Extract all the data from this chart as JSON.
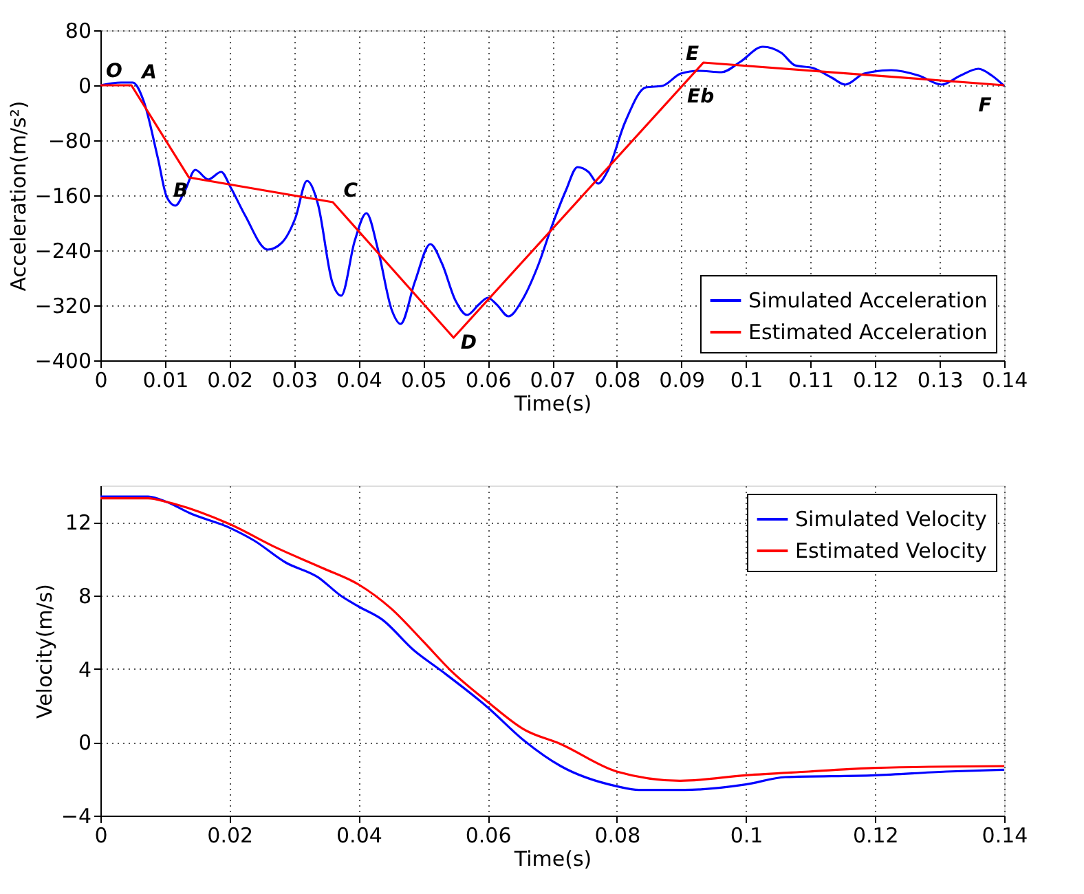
{
  "chart_data": [
    {
      "type": "line",
      "xlabel": "Time(s)",
      "ylabel": "Acceleration(m/s²)",
      "xlim": [
        0,
        0.14
      ],
      "ylim": [
        -400,
        80
      ],
      "xticks": [
        0,
        0.01,
        0.02,
        0.03,
        0.04,
        0.05,
        0.06,
        0.07,
        0.08,
        0.09,
        0.1,
        0.11,
        0.12,
        0.13,
        0.14
      ],
      "yticks": [
        -400,
        -320,
        -240,
        -160,
        -80,
        0,
        80
      ],
      "grid": true,
      "legend": "bottom right",
      "series": [
        {
          "name": "Simulated Acceleration",
          "color": "#0000ff",
          "x": [
            0,
            0.0032,
            0.005,
            0.0067,
            0.0089,
            0.0103,
            0.0116,
            0.0131,
            0.0147,
            0.0167,
            0.0187,
            0.0202,
            0.0224,
            0.0259,
            0.0281,
            0.0302,
            0.032,
            0.0337,
            0.0359,
            0.0373,
            0.0394,
            0.0412,
            0.043,
            0.0451,
            0.0465,
            0.0487,
            0.0511,
            0.0529,
            0.055,
            0.0568,
            0.0586,
            0.06,
            0.0614,
            0.0632,
            0.0653,
            0.0678,
            0.07,
            0.0721,
            0.0739,
            0.0756,
            0.0771,
            0.0785,
            0.0813,
            0.0845,
            0.087,
            0.0899,
            0.0927,
            0.0962,
            0.0991,
            0.1026,
            0.1055,
            0.1076,
            0.1104,
            0.1133,
            0.1154,
            0.1183,
            0.1225,
            0.1268,
            0.1303,
            0.1332,
            0.136,
            0.1381,
            0.14
          ],
          "values": [
            0,
            4,
            4,
            -23,
            -106,
            -163,
            -175,
            -153,
            -123,
            -137,
            -126,
            -149,
            -189,
            -239,
            -229,
            -193,
            -139,
            -173,
            -286,
            -306,
            -226,
            -186,
            -239,
            -326,
            -347,
            -286,
            -231,
            -259,
            -313,
            -334,
            -319,
            -309,
            -319,
            -336,
            -313,
            -262,
            -203,
            -153,
            -119,
            -126,
            -143,
            -126,
            -53,
            -3,
            -1,
            17,
            21,
            19,
            34,
            56,
            47,
            29,
            25,
            11,
            1,
            17,
            22,
            14,
            1,
            14,
            24,
            14,
            -1
          ]
        },
        {
          "name": "Estimated Acceleration",
          "color": "#ff0000",
          "x": [
            0,
            0.0048,
            0.0137,
            0.036,
            0.0547,
            0.0934,
            0.14
          ],
          "values": [
            0,
            0,
            -134,
            -170,
            -367,
            33,
            0
          ]
        }
      ],
      "annotations": [
        {
          "text": "O",
          "x": 0,
          "y": 0
        },
        {
          "text": "A",
          "x": 0.0048,
          "y": 0
        },
        {
          "text": "B",
          "x": 0.0137,
          "y": -134
        },
        {
          "text": "C",
          "x": 0.036,
          "y": -170
        },
        {
          "text": "D",
          "x": 0.0547,
          "y": -367
        },
        {
          "text": "E",
          "x": 0.0934,
          "y": 33
        },
        {
          "text": "Eb",
          "x": 0.0934,
          "y": 21
        },
        {
          "text": "F",
          "x": 0.14,
          "y": 0
        }
      ]
    },
    {
      "type": "line",
      "xlabel": "Time(s)",
      "ylabel": "Velocity(m/s)",
      "xlim": [
        0,
        0.14
      ],
      "ylim": [
        -4,
        14
      ],
      "xticks": [
        0,
        0.02,
        0.04,
        0.06,
        0.08,
        0.1,
        0.12,
        0.14
      ],
      "yticks": [
        -4,
        0,
        4,
        8,
        12
      ],
      "grid": true,
      "legend": "top right",
      "series": [
        {
          "name": "Simulated Velocity",
          "color": "#0000ff",
          "x": [
            0,
            0.0074,
            0.0103,
            0.0138,
            0.02,
            0.0238,
            0.0287,
            0.0337,
            0.0372,
            0.04,
            0.0436,
            0.0486,
            0.0528,
            0.06,
            0.0656,
            0.0713,
            0.08,
            0.0834,
            0.0905,
            0.1,
            0.1061,
            0.12,
            0.131,
            0.14
          ],
          "values": [
            13.4,
            13.4,
            13.1,
            12.5,
            11.7,
            11.0,
            9.8,
            9.0,
            8.0,
            7.4,
            6.7,
            5.0,
            3.9,
            1.9,
            0.1,
            -1.3,
            -2.4,
            -2.6,
            -2.6,
            -2.3,
            -1.9,
            -1.8,
            -1.6,
            -1.5
          ]
        },
        {
          "name": "Estimated Velocity",
          "color": "#ff0000",
          "x": [
            0,
            0.0074,
            0.0103,
            0.02,
            0.0273,
            0.0344,
            0.04,
            0.045,
            0.05,
            0.0543,
            0.06,
            0.0656,
            0.0713,
            0.08,
            0.0898,
            0.1,
            0.1097,
            0.12,
            0.14
          ],
          "values": [
            13.3,
            13.3,
            13.1,
            11.9,
            10.6,
            9.5,
            8.6,
            7.3,
            5.5,
            3.9,
            2.2,
            0.7,
            -0.1,
            -1.6,
            -2.1,
            -1.8,
            -1.6,
            -1.4,
            -1.3
          ]
        }
      ]
    }
  ]
}
